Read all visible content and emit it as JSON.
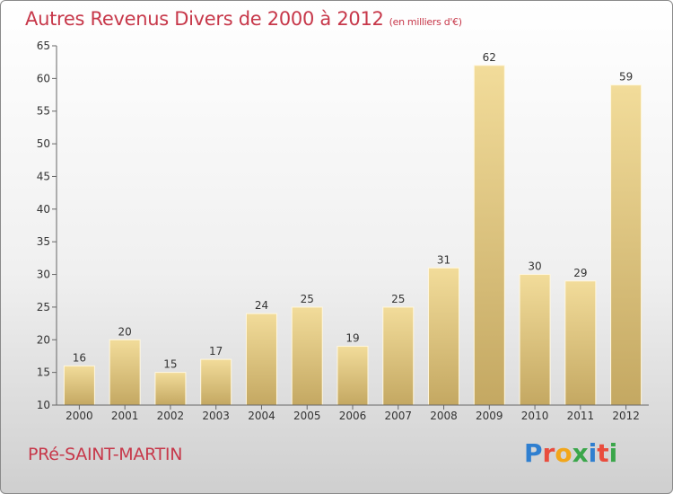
{
  "chart_data": {
    "type": "bar",
    "title": "Autres Revenus Divers de 2000 à 2012",
    "unit": "(en milliers d'€)",
    "categories": [
      "2000",
      "2001",
      "2002",
      "2003",
      "2004",
      "2005",
      "2006",
      "2007",
      "2008",
      "2009",
      "2010",
      "2011",
      "2012"
    ],
    "values": [
      16,
      20,
      15,
      17,
      24,
      25,
      19,
      25,
      31,
      62,
      30,
      29,
      59
    ],
    "ylim": [
      10,
      65
    ],
    "yticks": [
      10,
      15,
      20,
      25,
      30,
      35,
      40,
      45,
      50,
      55,
      60,
      65
    ],
    "grid": false,
    "colors": {
      "bar_top": "#f2dc9a",
      "bar_bottom": "#c4a862",
      "title": "#c7384a"
    }
  },
  "footer": {
    "city": "PRé-SAINT-MARTIN",
    "logo_letters": [
      "P",
      "r",
      "o",
      "x",
      "i",
      "t",
      "i"
    ],
    "logo_colors": [
      "#2f7fd0",
      "#e94c3d",
      "#f2a61a",
      "#3aa64a",
      "#2f7fd0",
      "#e94c3d",
      "#3aa64a"
    ]
  }
}
